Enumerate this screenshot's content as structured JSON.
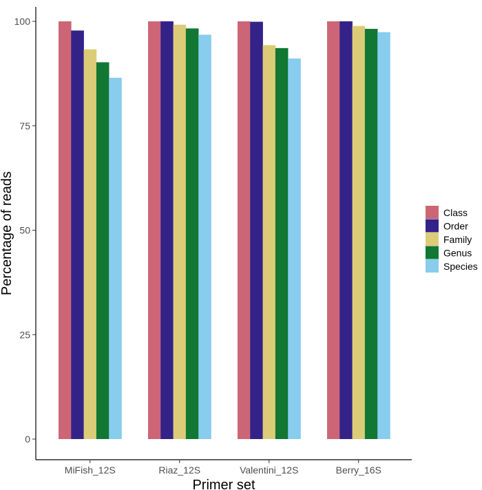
{
  "chart_data": {
    "type": "bar",
    "title": "",
    "xlabel": "Primer set",
    "ylabel": "Percentage of reads",
    "ylim": [
      0,
      100
    ],
    "yticks": [
      0,
      25,
      50,
      75,
      100
    ],
    "categories": [
      "MiFish_12S",
      "Riaz_12S",
      "Valentini_12S",
      "Berry_16S"
    ],
    "series": [
      {
        "name": "Class",
        "color": "#CC6677",
        "values": [
          100,
          100,
          100,
          100
        ]
      },
      {
        "name": "Order",
        "color": "#332288",
        "values": [
          97.8,
          100,
          99.9,
          100
        ]
      },
      {
        "name": "Family",
        "color": "#DDCC77",
        "values": [
          93.3,
          99.2,
          94.3,
          98.9
        ]
      },
      {
        "name": "Genus",
        "color": "#117733",
        "values": [
          90.2,
          98.3,
          93.6,
          98.2
        ]
      },
      {
        "name": "Species",
        "color": "#88CCEE",
        "values": [
          86.5,
          96.8,
          91.1,
          97.4
        ]
      }
    ],
    "grid": false,
    "legend_position": "right"
  }
}
